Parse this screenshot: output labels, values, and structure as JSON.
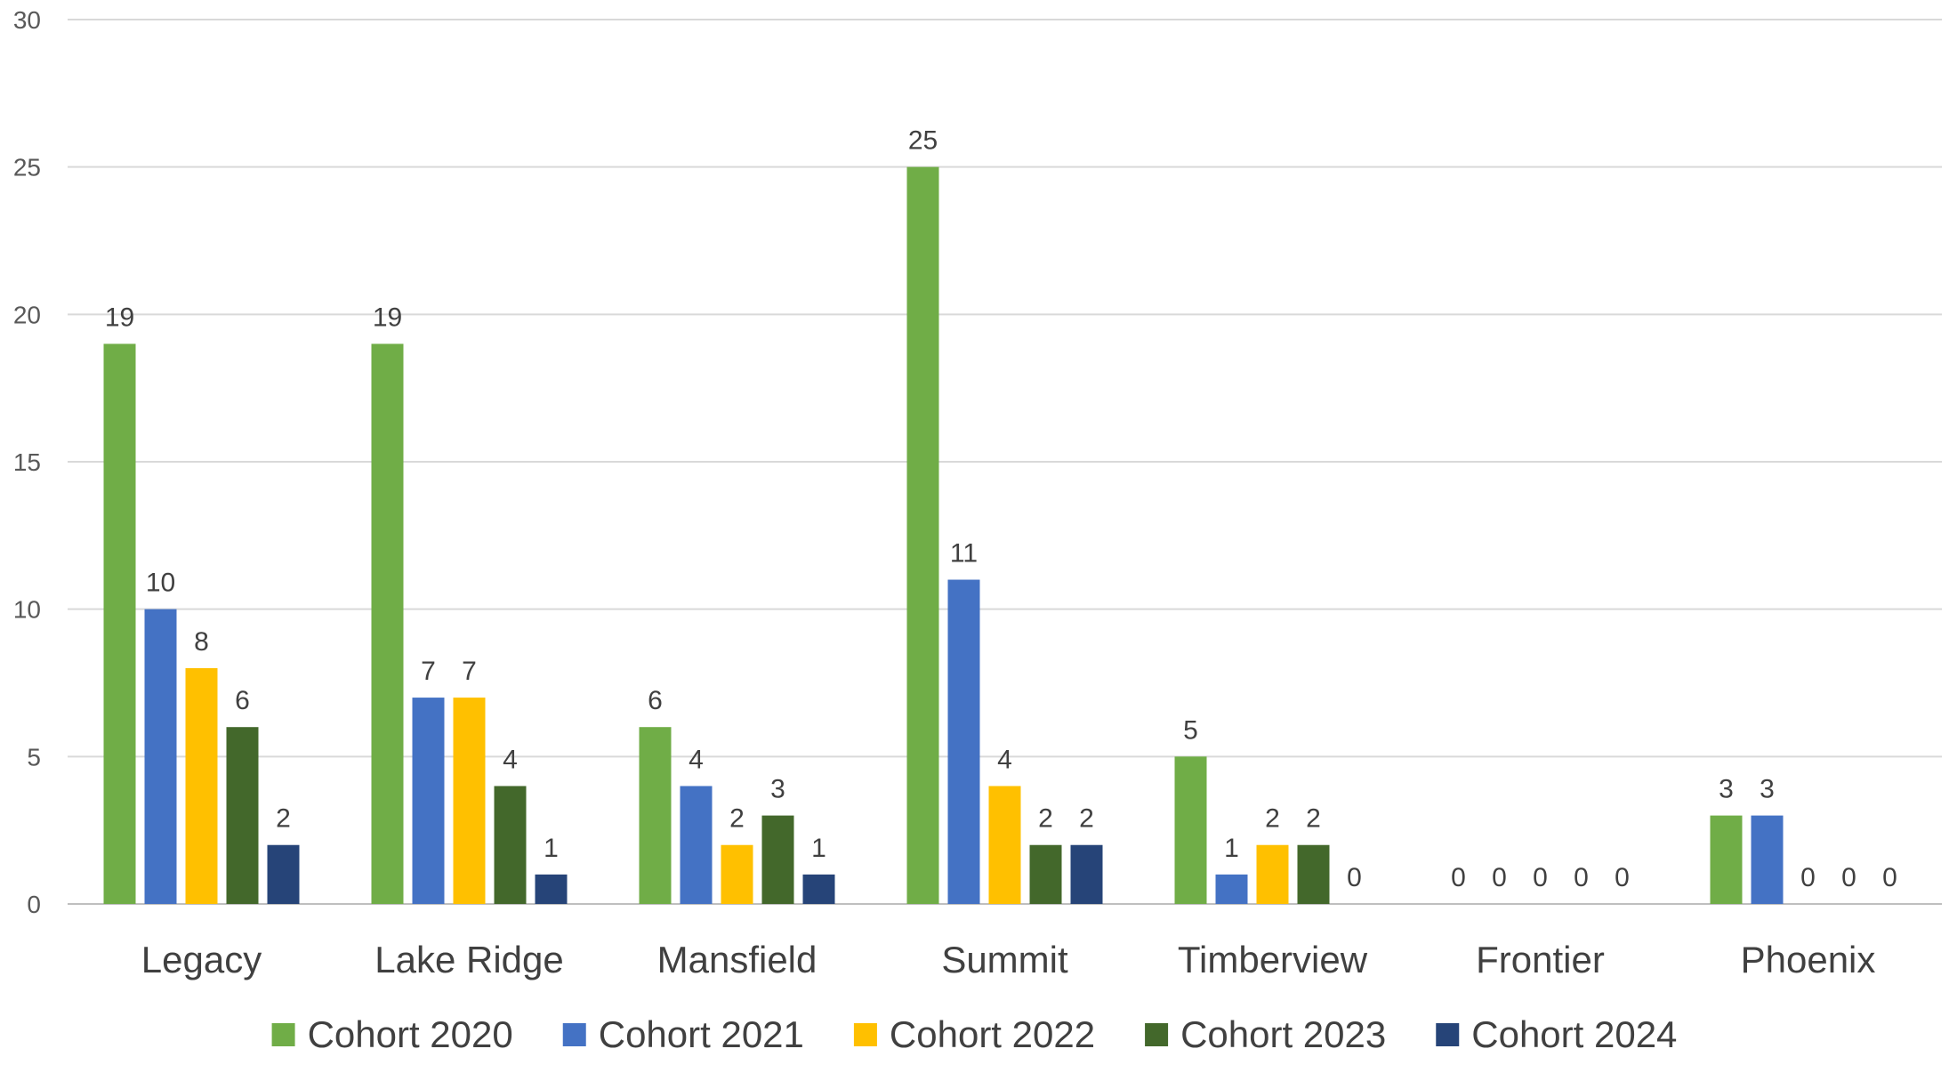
{
  "chart_data": {
    "type": "bar",
    "title": "",
    "xlabel": "",
    "ylabel": "",
    "ylim": [
      0,
      30
    ],
    "yticks": [
      0,
      5,
      10,
      15,
      20,
      25,
      30
    ],
    "grid": true,
    "legend_position": "bottom",
    "data_labels": true,
    "categories": [
      "Legacy",
      "Lake Ridge",
      "Mansfield",
      "Summit",
      "Timberview",
      "Frontier",
      "Phoenix"
    ],
    "series": [
      {
        "name": "Cohort 2020",
        "color": "#70ad47",
        "values": [
          19,
          19,
          6,
          25,
          5,
          0,
          3
        ]
      },
      {
        "name": "Cohort 2021",
        "color": "#4472c4",
        "values": [
          10,
          7,
          4,
          11,
          1,
          0,
          3
        ]
      },
      {
        "name": "Cohort 2022",
        "color": "#ffc000",
        "values": [
          8,
          7,
          2,
          4,
          2,
          0,
          0
        ]
      },
      {
        "name": "Cohort 2023",
        "color": "#43682b",
        "values": [
          6,
          4,
          3,
          2,
          2,
          0,
          0
        ]
      },
      {
        "name": "Cohort 2024",
        "color": "#264478",
        "values": [
          2,
          1,
          1,
          2,
          0,
          0,
          0
        ]
      }
    ]
  }
}
